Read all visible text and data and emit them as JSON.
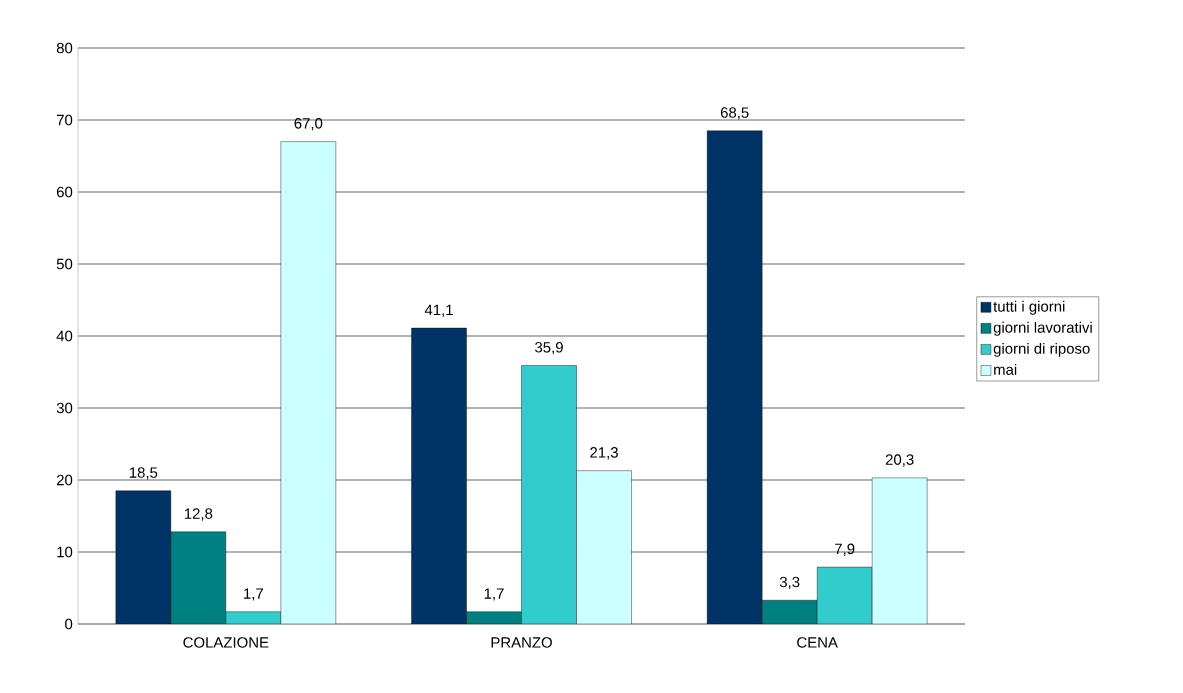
{
  "chart_data": {
    "type": "bar",
    "categories": [
      "COLAZIONE",
      "PRANZO",
      "CENA"
    ],
    "series": [
      {
        "name": "tutti i giorni",
        "color": "#003366",
        "values": [
          18.5,
          41.1,
          68.5
        ],
        "value_labels": [
          "18,5",
          "41,1",
          "68,5"
        ]
      },
      {
        "name": "giorni lavorativi",
        "color": "#008080",
        "values": [
          12.8,
          1.7,
          3.3
        ],
        "value_labels": [
          "12,8",
          "1,7",
          "3,3"
        ]
      },
      {
        "name": "giorni di riposo",
        "color": "#33CCCC",
        "values": [
          1.7,
          35.9,
          7.9
        ],
        "value_labels": [
          "1,7",
          "35,9",
          "7,9"
        ]
      },
      {
        "name": "mai",
        "color": "#CCFFFF",
        "values": [
          67.0,
          21.3,
          20.3
        ],
        "value_labels": [
          "67,0",
          "21,3",
          "20,3"
        ]
      }
    ],
    "ylim": [
      0,
      80
    ],
    "yticks": [
      0,
      10,
      20,
      30,
      40,
      50,
      60,
      70,
      80
    ],
    "grid": "y",
    "legend": "right"
  }
}
